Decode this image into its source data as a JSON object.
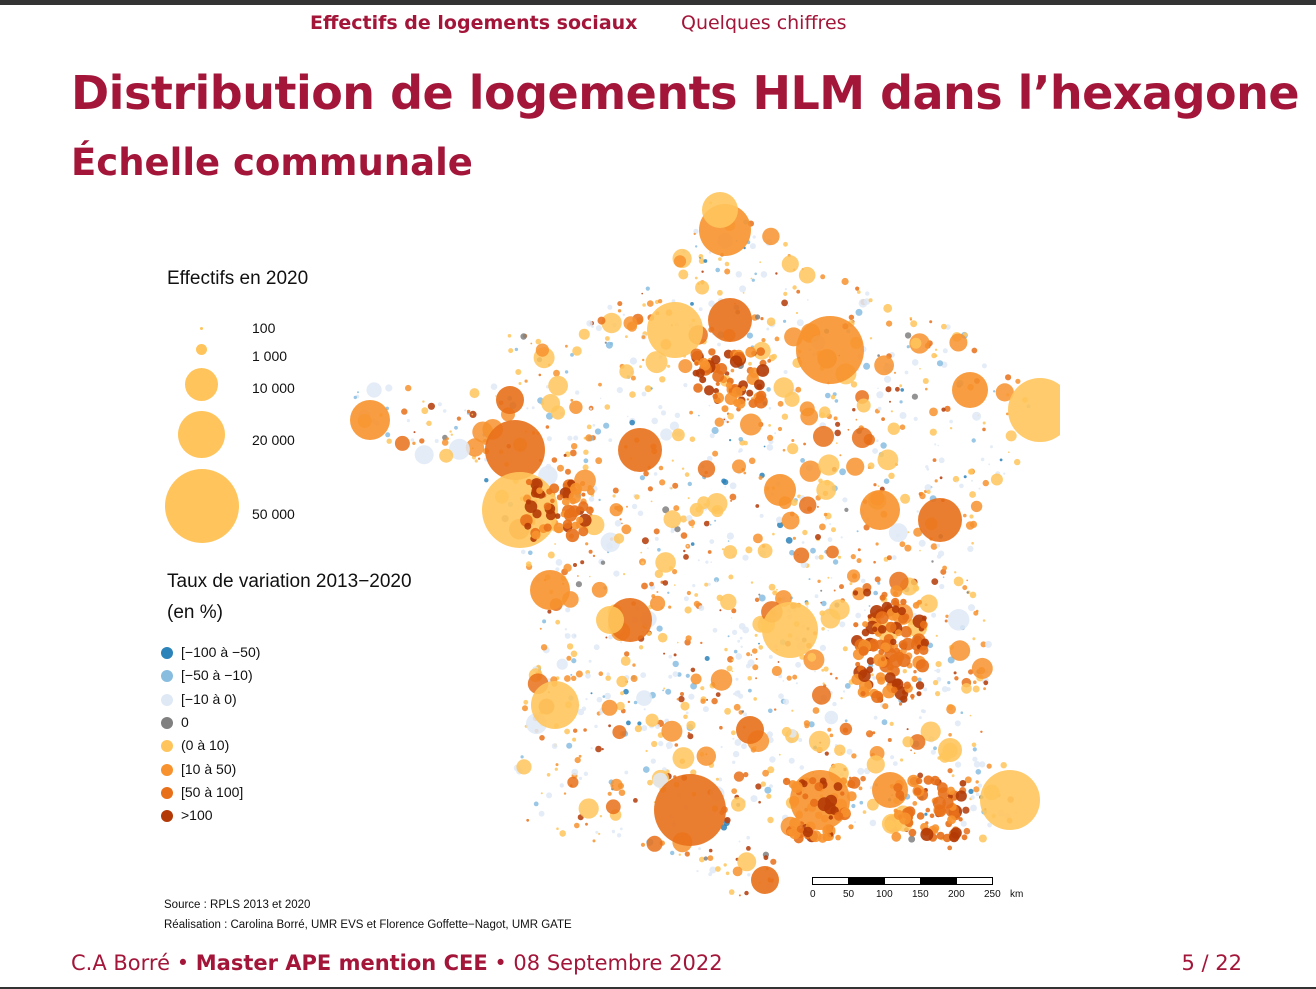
{
  "nav": {
    "section": "Effectifs de logements sociaux",
    "subsection": "Quelques chiffres"
  },
  "title": "Distribution de logements HLM dans l’hexagone",
  "subtitle": "Échelle communale",
  "legend_size": {
    "title": "Effectifs en 2020",
    "items": [
      {
        "label": "100",
        "value": 100
      },
      {
        "label": "1 000",
        "value": 1000
      },
      {
        "label": "10 000",
        "value": 10000
      },
      {
        "label": "20 000",
        "value": 20000
      },
      {
        "label": "50 000",
        "value": 50000
      }
    ],
    "color": "#ffc55c"
  },
  "legend_var": {
    "title_line1": "Taux de variation 2013−2020",
    "title_line2": "(en %)",
    "items": [
      {
        "label": "[−100 à −50)",
        "color": "#2b83ba"
      },
      {
        "label": "[−50 à −10)",
        "color": "#88bde0"
      },
      {
        "label": "[−10 à 0)",
        "color": "#dfe9f6"
      },
      {
        "label": "0",
        "color": "#808080"
      },
      {
        "label": "(0 à 10)",
        "color": "#ffc55c"
      },
      {
        "label": "[10 à 50)",
        "color": "#f7922e"
      },
      {
        "label": "[50 à 100]",
        "color": "#e8701a"
      },
      {
        "label": ">100",
        "color": "#b33a06"
      }
    ]
  },
  "source": {
    "line1": "Source : RPLS 2013 et 2020",
    "line2": "Réalisation : Carolina Borré, UMR EVS et Florence Goffette−Nagot, UMR GATE"
  },
  "scalebar": {
    "ticks": [
      "0",
      "50",
      "100",
      "150",
      "200",
      "250"
    ],
    "unit": "km"
  },
  "footer": {
    "author": "C.A Borré",
    "program": "Master APE mention CEE",
    "date": "08 Septembre 2022",
    "page": "5 / 22"
  },
  "colors": {
    "accent": "#a3163a"
  }
}
